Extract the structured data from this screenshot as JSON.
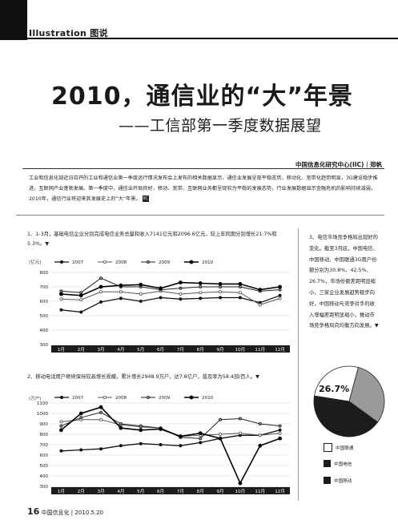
{
  "header": {
    "section_tag": "Illustration  图说"
  },
  "article": {
    "title": "2010，通信业的“大”年景",
    "subtitle": "——工信部第一季度数据展望",
    "byline": "中国信息化研究中心(IIC)｜郑帆",
    "intro": "工业和信息化部近日召开的工业和通信业第一季度运行情况发布会上发布的相关数据显示，通信业发展呈现平稳态势，移动化、宽带化趋势明显，3G建设稳步推进，互联网产业蓬勃发展。第一季度中，通信业开局良好，移动、宽带、互联网业务都呈现较为平稳的发展态势，行业发展数据显示金融危机的影响持续减弱，2010年，通信行业将迎来其发展史上的“大”年景。",
    "intro_badge": "IIC"
  },
  "section1": {
    "text": "1、1-3月，基础电信企业分别完成电信业务总量和收入7141亿元和2096.6亿元，较上年同期分别增长21.7%和5.3%。▼",
    "unit": "(亿元)"
  },
  "section2": {
    "text": "2、移动电话用户继续保持较高增长规模，累计增长2948.9万户，达7.8亿户，普及率为58.4部/百人。▼",
    "unit": "(万户)"
  },
  "sidebar": {
    "text": "3、电信市场竞争格局出现好的变化。截至3月底，中国电信、中国移动、中国联通3G用户份额分别为30.8%、42.5%、26.7%，市场份额差距明显缩小，三家企业发展趋势稳步向好，中国移动与竞争对手的收入增幅差距明显缩小，推动市场竞争格局向均衡方向发展。▼"
  },
  "footer": {
    "page_number": "16",
    "publication": "中国信息化 | 2010.5.20"
  },
  "colors": {
    "pie_dark": "#1c1c1c",
    "pie_light": "#ffffff",
    "pie_gray": "#9a9a9a"
  },
  "chart_data": [
    {
      "type": "line",
      "title": "",
      "xlabel": "",
      "ylabel": "(亿元)",
      "x": [
        "1月",
        "2月",
        "3月",
        "4月",
        "5月",
        "6月",
        "7月",
        "8月",
        "9月",
        "10月",
        "11月",
        "12月"
      ],
      "ylim": [
        300,
        800
      ],
      "yticks": [
        300,
        400,
        500,
        600,
        700,
        800
      ],
      "legend_position": "top-left",
      "series": [
        {
          "name": "2007",
          "values": [
            540,
            525,
            595,
            620,
            600,
            625,
            615,
            620,
            625,
            625,
            590,
            640
          ],
          "marker": "circle"
        },
        {
          "name": "2008",
          "values": [
            615,
            610,
            665,
            665,
            650,
            670,
            650,
            660,
            665,
            660,
            575,
            620
          ],
          "marker": "circle"
        },
        {
          "name": "2009",
          "values": [
            670,
            660,
            760,
            700,
            700,
            680,
            690,
            700,
            700,
            700,
            670,
            680
          ],
          "marker": "circle"
        },
        {
          "name": "2010",
          "values": [
            650,
            640,
            700,
            710,
            715,
            690,
            730,
            725,
            720,
            720,
            680,
            700
          ],
          "marker": "circle"
        }
      ]
    },
    {
      "type": "line",
      "title": "",
      "xlabel": "",
      "ylabel": "(万户)",
      "x": [
        "1月",
        "2月",
        "3月",
        "4月",
        "5月",
        "6月",
        "7月",
        "8月",
        "9月",
        "10月",
        "11月",
        "12月"
      ],
      "ylim": [
        300,
        1100
      ],
      "yticks": [
        300,
        400,
        500,
        600,
        700,
        800,
        900,
        1000,
        1100
      ],
      "legend_position": "top-left",
      "series": [
        {
          "name": "2007",
          "values": [
            640,
            650,
            660,
            690,
            710,
            700,
            690,
            720,
            760,
            790,
            790,
            840
          ],
          "marker": "circle"
        },
        {
          "name": "2008",
          "values": [
            920,
            940,
            940,
            890,
            870,
            860,
            780,
            790,
            800,
            810,
            790,
            810
          ],
          "marker": "circle"
        },
        {
          "name": "2009",
          "values": [
            880,
            960,
            1010,
            900,
            880,
            860,
            770,
            760,
            940,
            950,
            900,
            880
          ],
          "marker": "circle"
        },
        {
          "name": "2010",
          "values": [
            840,
            1000,
            1060,
            860,
            840,
            850,
            780,
            810,
            760,
            330,
            690,
            760
          ],
          "marker": "circle"
        }
      ]
    },
    {
      "type": "pie",
      "title": "",
      "categories": [
        "中国联通",
        "中国电信",
        "中国移动"
      ],
      "values": [
        26.7,
        30.8,
        42.5
      ],
      "labels": [
        "26.7%"
      ]
    }
  ]
}
